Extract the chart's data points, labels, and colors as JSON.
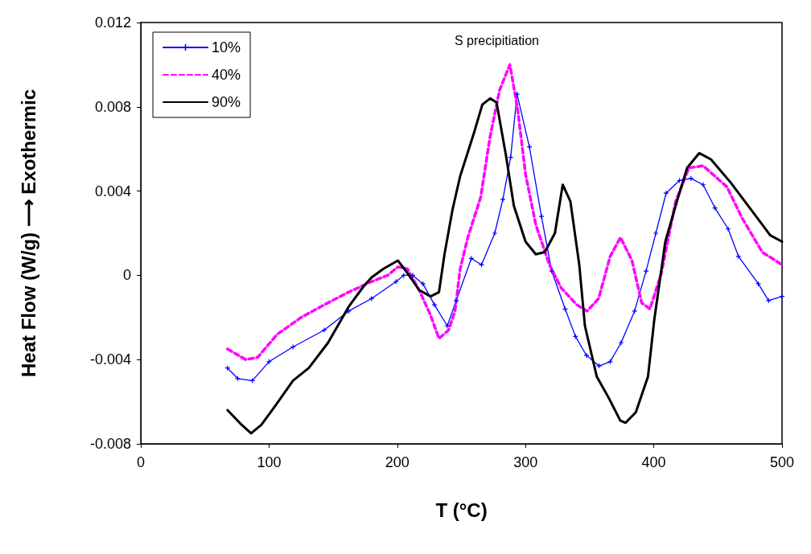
{
  "chart_data": {
    "type": "line",
    "xlabel": "T (°C)",
    "ylabel": "Heat Flow (W/g) ⟶ Exothermic",
    "annotations": [
      "S precipitiation"
    ],
    "xlim": [
      0,
      500
    ],
    "xticks": [
      0,
      100,
      200,
      300,
      400,
      500
    ],
    "ylim": [
      -0.008,
      0.012
    ],
    "yticks": [
      -0.008,
      -0.004,
      0,
      0.004,
      0.008,
      0.012
    ],
    "grid": false,
    "legend": "top left",
    "series": [
      {
        "name": "10%",
        "color": "#0000ff",
        "marker": "cross",
        "line_style": "solid",
        "x": [
          67.6,
          75.6,
          87,
          100,
          118.7,
          143,
          162,
          180,
          199,
          205,
          212,
          220,
          229,
          239,
          246,
          257.7,
          265.7,
          276,
          282.3,
          288.4,
          293.4,
          303,
          312.4,
          320.4,
          330.9,
          338.9,
          347.5,
          357.3,
          366,
          374.5,
          385,
          394,
          401.6,
          409.6,
          420,
          429,
          438.5,
          447.7,
          458,
          466,
          481.5,
          489.5,
          500
        ],
        "values": [
          -0.0044,
          -0.0049,
          -0.005,
          -0.0041,
          -0.0034,
          -0.0026,
          -0.0017,
          -0.0011,
          -0.0003,
          0,
          0,
          -0.0004,
          -0.0014,
          -0.0024,
          -0.0012,
          0.0008,
          0.0005,
          0.002,
          0.0036,
          0.0056,
          0.0086,
          0.0061,
          0.0028,
          0.0002,
          -0.0016,
          -0.0029,
          -0.0038,
          -0.0043,
          -0.0041,
          -0.0032,
          -0.0017,
          0.0002,
          0.002,
          0.0039,
          0.0045,
          0.0046,
          0.0043,
          0.0032,
          0.0022,
          0.0009,
          -0.0004,
          -0.0012,
          -0.001
        ]
      },
      {
        "name": "40%",
        "color": "#ff00ff",
        "marker": "none",
        "line_style": "dashed",
        "x": [
          67.6,
          81.8,
          91,
          106.4,
          125,
          143,
          162,
          180,
          192.5,
          200.5,
          208,
          217,
          226,
          232.5,
          240,
          245,
          249,
          255,
          265,
          272.4,
          279.8,
          287.8,
          293.8,
          300,
          308,
          318.6,
          327.8,
          340,
          348,
          357,
          366,
          374,
          383,
          390.5,
          397,
          405.9,
          417,
          427.4,
          438.5,
          457,
          469,
          484.6,
          500
        ],
        "values": [
          -0.0035,
          -0.004,
          -0.0039,
          -0.0028,
          -0.002,
          -0.0014,
          -0.0008,
          -0.0003,
          0,
          0.0004,
          0.0003,
          -0.0007,
          -0.0019,
          -0.003,
          -0.0026,
          -0.0017,
          0.0003,
          0.0018,
          0.0037,
          0.0066,
          0.0088,
          0.01,
          0.0079,
          0.0048,
          0.0024,
          0.0005,
          -0.0006,
          -0.0014,
          -0.0017,
          -0.0011,
          0.0009,
          0.0018,
          0.0007,
          -0.0013,
          -0.0016,
          0.0001,
          0.0035,
          0.0051,
          0.0052,
          0.0042,
          0.0027,
          0.0011,
          0.0005
        ]
      },
      {
        "name": "90%",
        "color": "#000000",
        "marker": "none",
        "line_style": "solid",
        "x": [
          67.6,
          78.7,
          86,
          94,
          106,
          118.7,
          131,
          146,
          162,
          174,
          180,
          189,
          200.5,
          208,
          217,
          226,
          232.5,
          236.8,
          243,
          249,
          260,
          266.3,
          272.4,
          277.4,
          284.7,
          290.9,
          300,
          308,
          315,
          322.9,
          329,
          335,
          341.9,
          346.3,
          355.5,
          364.7,
          373.9,
          378,
          386,
          395.5,
          400.4,
          409,
          418,
          426,
          435.4,
          444.6,
          460,
          478.5,
          490.8,
          500
        ],
        "values": [
          -0.0064,
          -0.0071,
          -0.0075,
          -0.0071,
          -0.0061,
          -0.005,
          -0.0044,
          -0.0032,
          -0.0015,
          -0.0005,
          -0.0001,
          0.0003,
          0.0007,
          0.0001,
          -0.0007,
          -0.001,
          -0.0008,
          0.001,
          0.0031,
          0.0047,
          0.0068,
          0.0081,
          0.0084,
          0.0082,
          0.0057,
          0.0033,
          0.0016,
          0.001,
          0.0011,
          0.002,
          0.0043,
          0.0035,
          0.0005,
          -0.0024,
          -0.0048,
          -0.0058,
          -0.0069,
          -0.007,
          -0.0065,
          -0.0048,
          -0.0021,
          0.0016,
          0.0035,
          0.0051,
          0.0058,
          0.0055,
          0.0044,
          0.0029,
          0.0019,
          0.0016
        ]
      }
    ]
  }
}
